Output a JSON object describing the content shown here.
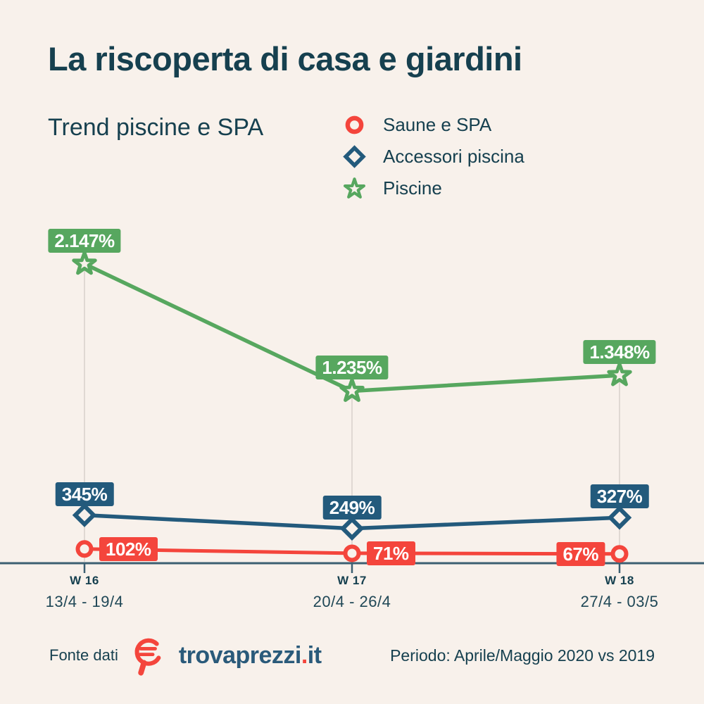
{
  "title": "La riscoperta di casa e giardini",
  "subtitle": "Trend piscine e SPA",
  "colors": {
    "background": "#f8f1eb",
    "ink": "#16404f",
    "red": "#f4453c",
    "blue": "#235a7c",
    "green": "#57a75f",
    "axis": "#3c5f72",
    "drop_line": "#dad3cd",
    "badge_text": "#ffffff"
  },
  "legend": [
    {
      "label": "Saune e SPA",
      "marker": "circle-icon",
      "color": "#f4453c"
    },
    {
      "label": "Accessori piscina",
      "marker": "diamond-icon",
      "color": "#235a7c"
    },
    {
      "label": "Piscine",
      "marker": "star-icon",
      "color": "#57a75f"
    }
  ],
  "chart_data": {
    "type": "line",
    "categories": [
      "W 16",
      "W 17",
      "W 18"
    ],
    "category_dates": [
      "13/4 - 19/4",
      "20/4 - 26/4",
      "27/4 - 03/5"
    ],
    "series": [
      {
        "name": "Saune e SPA",
        "marker": "circle",
        "color": "#f4453c",
        "values": [
          102,
          71,
          67
        ],
        "labels": [
          "102%",
          "71%",
          "67%"
        ],
        "label_positions": [
          "right",
          "right",
          "left"
        ]
      },
      {
        "name": "Accessori piscina",
        "marker": "diamond",
        "color": "#235a7c",
        "values": [
          345,
          249,
          327
        ],
        "labels": [
          "345%",
          "249%",
          "327%"
        ],
        "label_positions": [
          "above",
          "above",
          "above"
        ]
      },
      {
        "name": "Piscine",
        "marker": "star",
        "color": "#57a75f",
        "values": [
          2147,
          1235,
          1348
        ],
        "labels": [
          "2.147%",
          "1.235%",
          "1.348%"
        ],
        "label_positions": [
          "above",
          "above",
          "above"
        ]
      }
    ],
    "ylim": [
      0,
      2250
    ],
    "grid": "vertical-drop-lines",
    "legend_position": "top-right",
    "x_axis_baseline_value": 0
  },
  "footer": {
    "source_label": "Fonte dati",
    "logo": {
      "name": "trovaprezzi",
      "dot": ".",
      "tld": "it"
    },
    "period": "Periodo: Aprile/Maggio 2020 vs 2019"
  }
}
